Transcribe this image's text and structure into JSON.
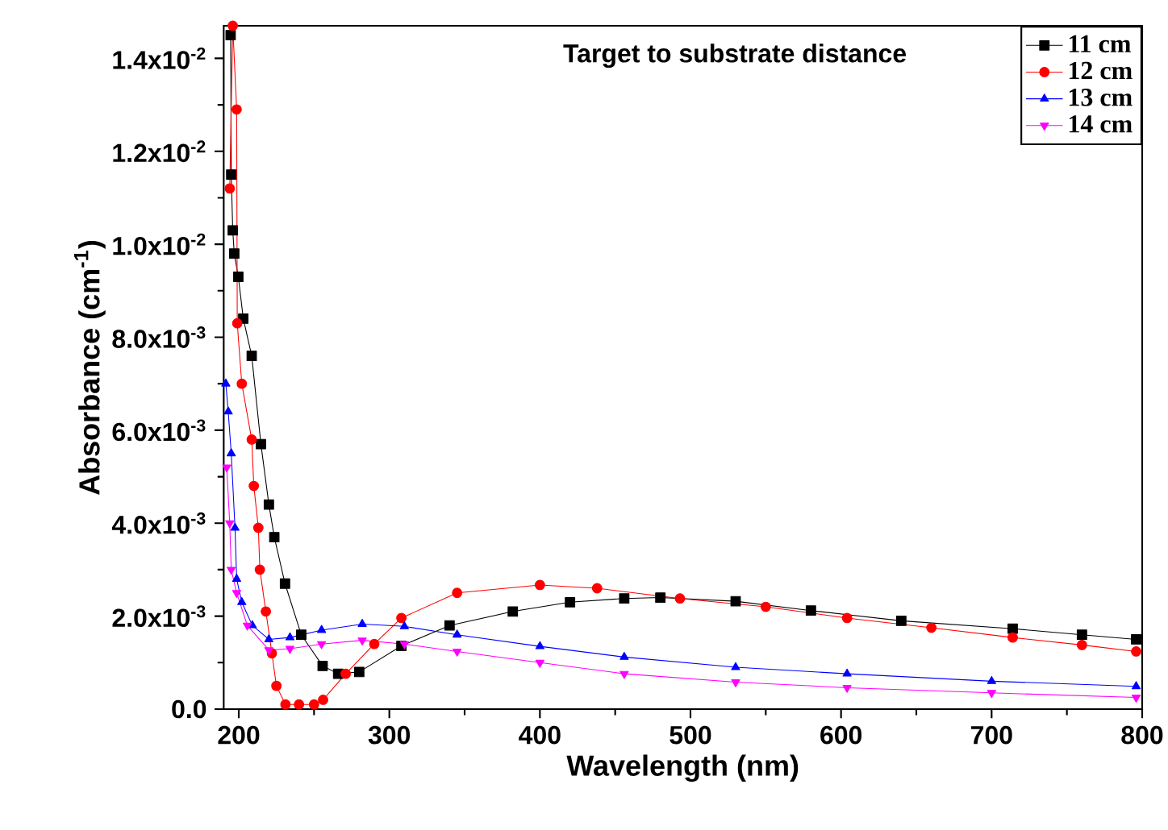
{
  "chart_data": {
    "type": "line",
    "xlabel": "Wavelength (nm)",
    "ylabel": "Absorbance (cm$^{-1}$)",
    "legend_title": "Target to substrate distance",
    "legend": "top right",
    "line_style": "solid",
    "xlim": [
      190,
      800
    ],
    "xticks": [
      200,
      300,
      400,
      500,
      600,
      700,
      800
    ],
    "ylim": [
      0,
      0.0147
    ],
    "yticks": [
      {
        "value": 0,
        "label": "0.0"
      },
      {
        "value": 0.002,
        "label": "2.0x10$^{-3}$"
      },
      {
        "value": 0.004,
        "label": "4.0x10$^{-3}$"
      },
      {
        "value": 0.006,
        "label": "6.0x10$^{-3}$"
      },
      {
        "value": 0.008,
        "label": "8.0x10$^{-3}$"
      },
      {
        "value": 0.01,
        "label": "1.0x10$^{-2}$"
      },
      {
        "value": 0.012,
        "label": "1.2x10$^{-2}$"
      },
      {
        "value": 0.014,
        "label": "1.4x10$^{-2}$"
      }
    ],
    "series": [
      {
        "name": "11 cm",
        "color": "#000000",
        "marker": "square",
        "x": [
          194.6,
          195,
          196,
          197,
          199.7,
          203,
          208.6,
          214.7,
          220,
          223.6,
          230.7,
          241.5,
          255.7,
          266,
          280,
          308,
          340,
          382,
          420,
          456,
          480,
          530,
          580,
          640,
          714,
          760,
          796
        ],
        "values": [
          0.0145,
          0.0115,
          0.0103,
          0.0098,
          0.0093,
          0.0084,
          0.0076,
          0.0057,
          0.0044,
          0.0037,
          0.0027,
          0.0016,
          0.00093,
          0.00076,
          0.0008,
          0.00136,
          0.0018,
          0.0021,
          0.0023,
          0.00238,
          0.0024,
          0.00232,
          0.00212,
          0.0019,
          0.00173,
          0.0016,
          0.0015
        ]
      },
      {
        "name": "12 cm",
        "color": "#ff0000",
        "marker": "circle",
        "x": [
          194,
          196,
          198.6,
          199,
          202,
          208.6,
          210,
          213,
          214,
          218,
          222,
          225,
          231,
          240,
          250,
          256,
          271,
          290,
          308,
          345,
          400,
          438,
          493,
          550,
          604,
          660,
          714,
          760,
          796
        ],
        "values": [
          0.0112,
          0.0147,
          0.0129,
          0.0083,
          0.007,
          0.0058,
          0.0048,
          0.0039,
          0.003,
          0.0021,
          0.0012,
          0.0005,
          0.0001,
          0.0001,
          0.0001,
          0.0002,
          0.00076,
          0.0014,
          0.00196,
          0.0025,
          0.00267,
          0.0026,
          0.00238,
          0.0022,
          0.00196,
          0.00175,
          0.00154,
          0.00138,
          0.00124
        ]
      },
      {
        "name": "13 cm",
        "color": "#0000ff",
        "marker": "triangle",
        "x": [
          191.4,
          193,
          195,
          197.5,
          198.6,
          202,
          209,
          220,
          234,
          255,
          282,
          310,
          345,
          400,
          456,
          530,
          604,
          700,
          796
        ],
        "values": [
          0.007,
          0.0064,
          0.0055,
          0.0039,
          0.0028,
          0.0023,
          0.0018,
          0.0015,
          0.00154,
          0.0017,
          0.00183,
          0.00178,
          0.0016,
          0.00135,
          0.00112,
          0.0009,
          0.00076,
          0.0006,
          0.00049
        ]
      },
      {
        "name": "14 cm",
        "color": "#ff00ff",
        "marker": "triangle down",
        "x": [
          192,
          194,
          195,
          198.6,
          205.7,
          220,
          234,
          255,
          282,
          310,
          345,
          400,
          456,
          530,
          604,
          700,
          796
        ],
        "values": [
          0.0052,
          0.004,
          0.003,
          0.0025,
          0.0018,
          0.00127,
          0.0013,
          0.0014,
          0.00148,
          0.0014,
          0.00124,
          0.001,
          0.00076,
          0.00058,
          0.00046,
          0.00035,
          0.00025
        ]
      }
    ]
  }
}
